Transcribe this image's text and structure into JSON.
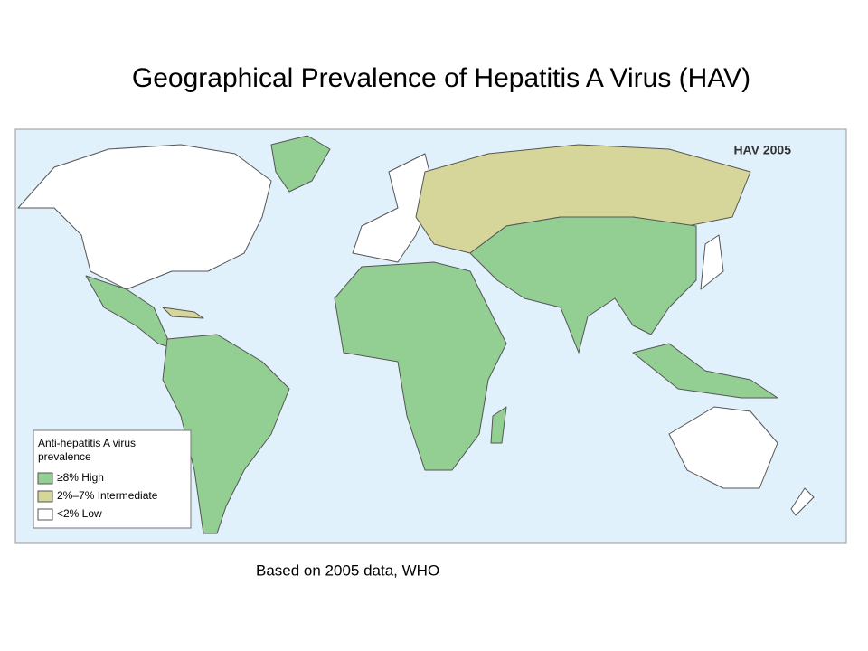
{
  "header": {
    "title": "Geographical Prevalence of Hepatitis A Virus (HAV)"
  },
  "map": {
    "label": "HAV 2005"
  },
  "legend": {
    "title_lines": [
      "Anti-hepatitis A virus",
      "prevalence"
    ],
    "items": [
      {
        "label": "≥8%  High",
        "color": "#93cf93"
      },
      {
        "label": "2%–7% Intermediate",
        "color": "#d6d69a"
      },
      {
        "label": "<2%  Low",
        "color": "#ffffff"
      }
    ]
  },
  "footer": {
    "caption": "Based on 2005 data, WHO"
  }
}
